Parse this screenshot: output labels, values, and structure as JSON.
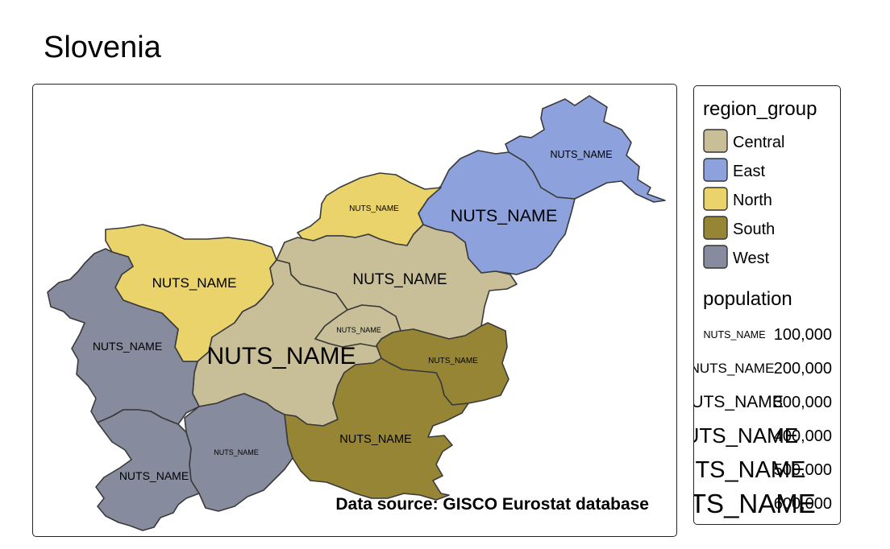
{
  "title": "Slovenia",
  "source_text": "Data source: GISCO Eurostat database",
  "legend": {
    "region_title": "region_group",
    "region_items": [
      {
        "label": "Central",
        "color": "#C8BF98"
      },
      {
        "label": "East",
        "color": "#8DA2DC"
      },
      {
        "label": "North",
        "color": "#E9D36A"
      },
      {
        "label": "South",
        "color": "#978536"
      },
      {
        "label": "West",
        "color": "#878B9E"
      }
    ],
    "population_title": "population",
    "population_items": [
      {
        "sample": "NUTS_NAME",
        "value": "100,000"
      },
      {
        "sample": "NUTS_NAME",
        "value": "200,000"
      },
      {
        "sample": "NUTS_NAME",
        "value": "300,000"
      },
      {
        "sample": "NUTS_NAME",
        "value": "400,000"
      },
      {
        "sample": "NUTS_NAME",
        "value": "500,000"
      },
      {
        "sample": "NUTS_NAME",
        "value": "600,000"
      }
    ]
  },
  "regions": [
    {
      "id": "pomurska",
      "group": "East",
      "color": "#8DA2DC",
      "label": "NUTS_NAME"
    },
    {
      "id": "podravska",
      "group": "East",
      "color": "#8DA2DC",
      "label": "NUTS_NAME"
    },
    {
      "id": "koroska",
      "group": "North",
      "color": "#E9D36A",
      "label": "NUTS_NAME"
    },
    {
      "id": "gorenjska",
      "group": "North",
      "color": "#E9D36A",
      "label": "NUTS_NAME"
    },
    {
      "id": "savinjska",
      "group": "Central",
      "color": "#C8BF98",
      "label": "NUTS_NAME"
    },
    {
      "id": "osrednjeslovenska",
      "group": "Central",
      "color": "#C8BF98",
      "label": "NUTS_NAME"
    },
    {
      "id": "zasavska",
      "group": "Central",
      "color": "#C8BF98",
      "label": "NUTS_NAME"
    },
    {
      "id": "posavska",
      "group": "South",
      "color": "#978536",
      "label": "NUTS_NAME"
    },
    {
      "id": "jugovzhodna",
      "group": "South",
      "color": "#978536",
      "label": "NUTS_NAME"
    },
    {
      "id": "goriska",
      "group": "West",
      "color": "#878B9E",
      "label": "NUTS_NAME"
    },
    {
      "id": "primorsko-notranjska",
      "group": "West",
      "color": "#878B9E",
      "label": "NUTS_NAME"
    },
    {
      "id": "obalno-kraska",
      "group": "West",
      "color": "#878B9E",
      "label": "NUTS_NAME"
    }
  ]
}
